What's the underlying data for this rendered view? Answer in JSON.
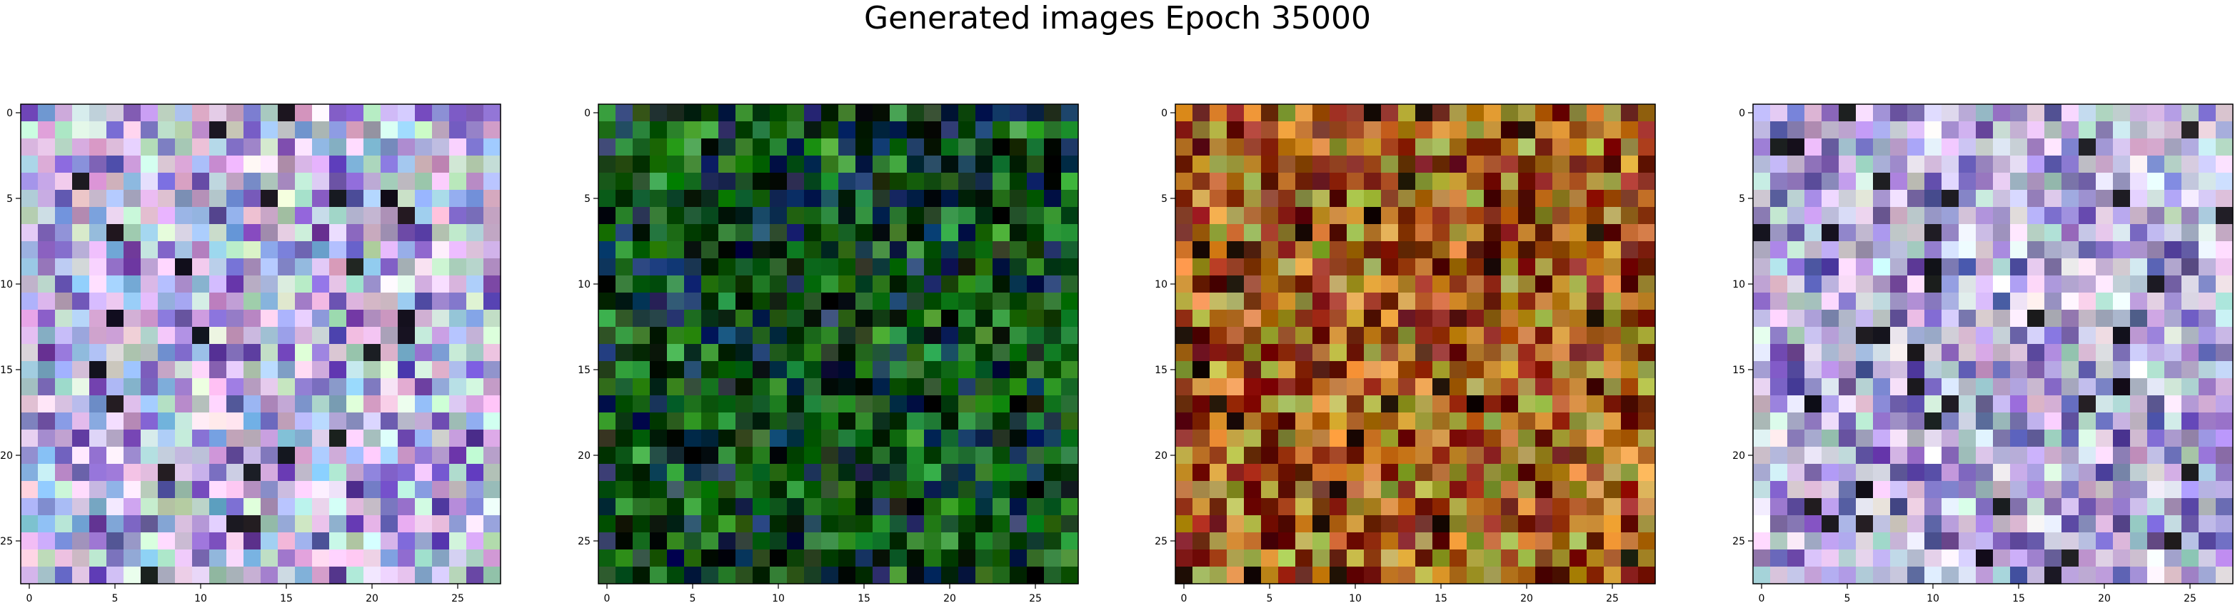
{
  "figure": {
    "title": "Generated images Epoch 35000"
  },
  "chart_data": [
    {
      "type": "heatmap",
      "grid": [
        28,
        28
      ],
      "dominant_colors": [
        "#c8a8d8",
        "#8fb0e0",
        "#e8c8e8",
        "#7a60c0",
        "#c0e0d0"
      ],
      "xlim": [
        -0.5,
        27.5
      ],
      "ylim": [
        27.5,
        -0.5
      ],
      "xticks": [
        "0",
        "5",
        "10",
        "15",
        "20",
        "25"
      ],
      "yticks": [
        "0",
        "5",
        "10",
        "15",
        "20",
        "25"
      ]
    },
    {
      "type": "heatmap",
      "grid": [
        28,
        28
      ],
      "dominant_colors": [
        "#1a6a1a",
        "#0a4a0a",
        "#2a8a2a",
        "#0a2a14",
        "#12305a"
      ],
      "xlim": [
        -0.5,
        27.5
      ],
      "ylim": [
        27.5,
        -0.5
      ],
      "xticks": [
        "0",
        "5",
        "10",
        "15",
        "20",
        "25"
      ],
      "yticks": [
        "0",
        "5",
        "10",
        "15",
        "20",
        "25"
      ]
    },
    {
      "type": "heatmap",
      "grid": [
        28,
        28
      ],
      "dominant_colors": [
        "#b06a20",
        "#8a2a10",
        "#d08a30",
        "#6a1a0a",
        "#a0a040"
      ],
      "xlim": [
        -0.5,
        27.5
      ],
      "ylim": [
        27.5,
        -0.5
      ],
      "xticks": [
        "0",
        "5",
        "10",
        "15",
        "20",
        "25"
      ],
      "yticks": [
        "0",
        "5",
        "10",
        "15",
        "20",
        "25"
      ]
    },
    {
      "type": "heatmap",
      "grid": [
        28,
        28
      ],
      "dominant_colors": [
        "#c8b8e0",
        "#a090d0",
        "#e0d0e8",
        "#7060b0",
        "#c0d8d8"
      ],
      "xlim": [
        -0.5,
        27.5
      ],
      "ylim": [
        27.5,
        -0.5
      ],
      "xticks": [
        "0",
        "5",
        "10",
        "15",
        "20",
        "25"
      ],
      "yticks": [
        "0",
        "5",
        "10",
        "15",
        "20",
        "25"
      ]
    }
  ]
}
